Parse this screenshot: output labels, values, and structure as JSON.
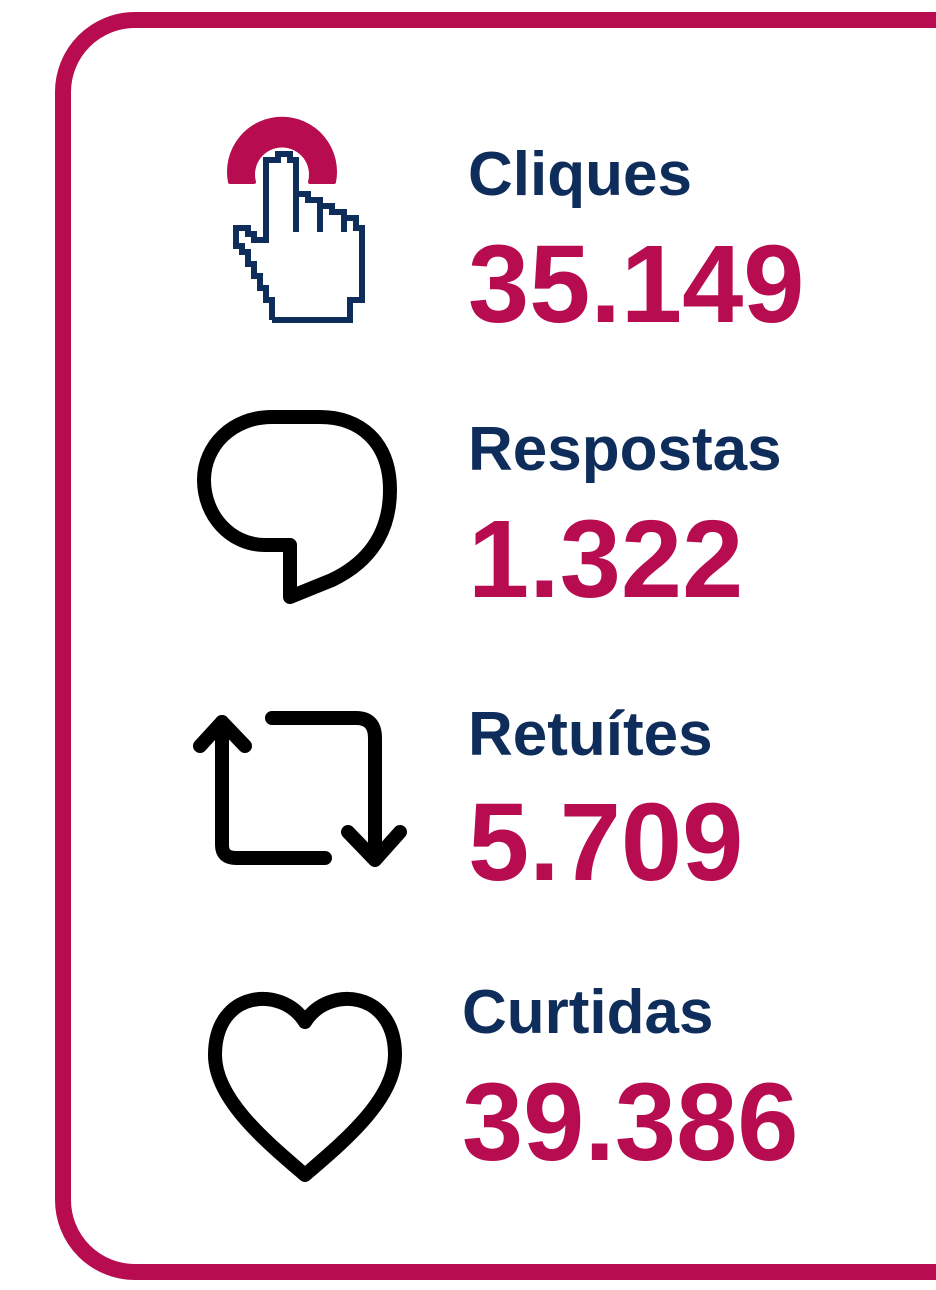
{
  "items": [
    {
      "label": "Cliques",
      "value": "35.149"
    },
    {
      "label": "Respostas",
      "value": "1.322"
    },
    {
      "label": "Retuítes",
      "value": "5.709"
    },
    {
      "label": "Curtidas",
      "value": "39.386"
    }
  ]
}
